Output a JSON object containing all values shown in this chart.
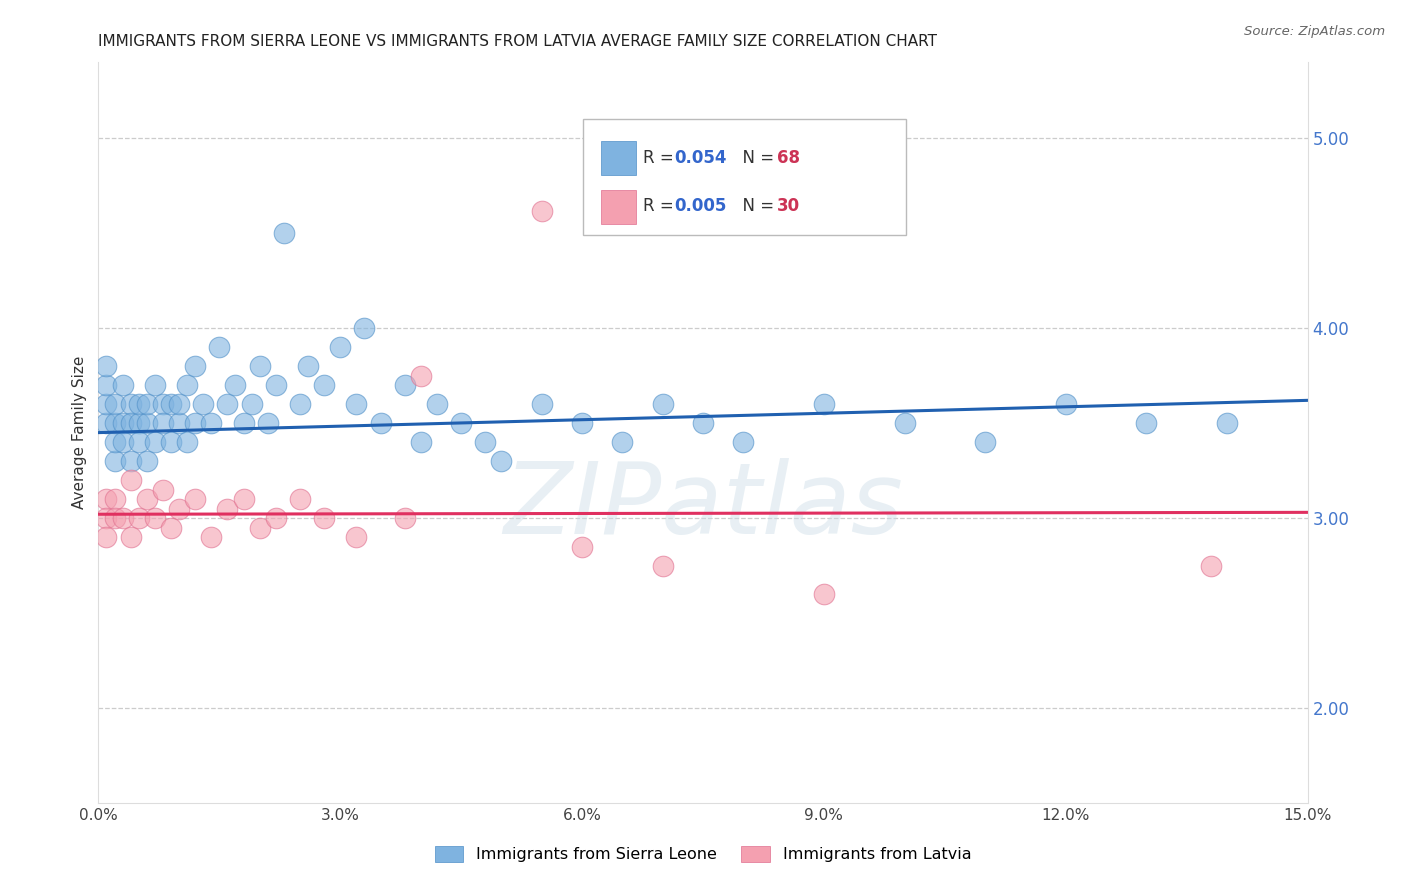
{
  "title": "IMMIGRANTS FROM SIERRA LEONE VS IMMIGRANTS FROM LATVIA AVERAGE FAMILY SIZE CORRELATION CHART",
  "source": "Source: ZipAtlas.com",
  "ylabel": "Average Family Size",
  "right_yticks": [
    2.0,
    3.0,
    4.0,
    5.0
  ],
  "x_range": [
    0.0,
    0.15
  ],
  "y_range": [
    1.5,
    5.4
  ],
  "sierra_leone_color": "#7fb3e0",
  "latvia_color": "#f4a0b0",
  "sierra_leone_edge": "#5090c8",
  "latvia_edge": "#e07090",
  "trend_blue": "#2060b0",
  "trend_pink": "#e03060",
  "legend_label_bottom_1": "Immigrants from Sierra Leone",
  "legend_label_bottom_2": "Immigrants from Latvia",
  "watermark": "ZIPatlas",
  "xtick_positions": [
    0.0,
    0.03,
    0.06,
    0.09,
    0.12,
    0.15
  ],
  "xtick_labels": [
    "0.0%",
    "3.0%",
    "6.0%",
    "9.0%",
    "12.0%",
    "15.0%"
  ],
  "sl_x": [
    0.001,
    0.001,
    0.001,
    0.001,
    0.002,
    0.002,
    0.002,
    0.002,
    0.003,
    0.003,
    0.003,
    0.004,
    0.004,
    0.004,
    0.005,
    0.005,
    0.005,
    0.006,
    0.006,
    0.006,
    0.007,
    0.007,
    0.008,
    0.008,
    0.009,
    0.009,
    0.01,
    0.01,
    0.011,
    0.011,
    0.012,
    0.012,
    0.013,
    0.014,
    0.015,
    0.016,
    0.017,
    0.018,
    0.019,
    0.02,
    0.021,
    0.022,
    0.023,
    0.025,
    0.026,
    0.028,
    0.03,
    0.032,
    0.033,
    0.035,
    0.038,
    0.04,
    0.042,
    0.045,
    0.048,
    0.05,
    0.055,
    0.06,
    0.065,
    0.07,
    0.075,
    0.08,
    0.09,
    0.1,
    0.11,
    0.12,
    0.13,
    0.14
  ],
  "sl_y": [
    3.5,
    3.6,
    3.7,
    3.8,
    3.5,
    3.6,
    3.3,
    3.4,
    3.7,
    3.5,
    3.4,
    3.6,
    3.3,
    3.5,
    3.5,
    3.4,
    3.6,
    3.5,
    3.3,
    3.6,
    3.7,
    3.4,
    3.6,
    3.5,
    3.4,
    3.6,
    3.5,
    3.6,
    3.4,
    3.7,
    3.5,
    3.8,
    3.6,
    3.5,
    3.9,
    3.6,
    3.7,
    3.5,
    3.6,
    3.8,
    3.5,
    3.7,
    4.5,
    3.6,
    3.8,
    3.7,
    3.9,
    3.6,
    4.0,
    3.5,
    3.7,
    3.4,
    3.6,
    3.5,
    3.4,
    3.3,
    3.6,
    3.5,
    3.4,
    3.6,
    3.5,
    3.4,
    3.6,
    3.5,
    3.4,
    3.6,
    3.5,
    3.5
  ],
  "lv_x": [
    0.001,
    0.001,
    0.001,
    0.002,
    0.002,
    0.003,
    0.004,
    0.004,
    0.005,
    0.006,
    0.007,
    0.008,
    0.009,
    0.01,
    0.012,
    0.014,
    0.016,
    0.018,
    0.02,
    0.022,
    0.025,
    0.028,
    0.032,
    0.038,
    0.04,
    0.055,
    0.06,
    0.07,
    0.09,
    0.138
  ],
  "lv_y": [
    3.1,
    3.0,
    2.9,
    3.1,
    3.0,
    3.0,
    3.2,
    2.9,
    3.0,
    3.1,
    3.0,
    3.15,
    2.95,
    3.05,
    3.1,
    2.9,
    3.05,
    3.1,
    2.95,
    3.0,
    3.1,
    3.0,
    2.9,
    3.0,
    3.75,
    4.62,
    2.85,
    2.75,
    2.6,
    2.75
  ],
  "sl_trend_x": [
    0.0,
    0.15
  ],
  "sl_trend_y": [
    3.45,
    3.62
  ],
  "lv_trend_x": [
    0.0,
    0.15
  ],
  "lv_trend_y": [
    3.02,
    3.03
  ]
}
